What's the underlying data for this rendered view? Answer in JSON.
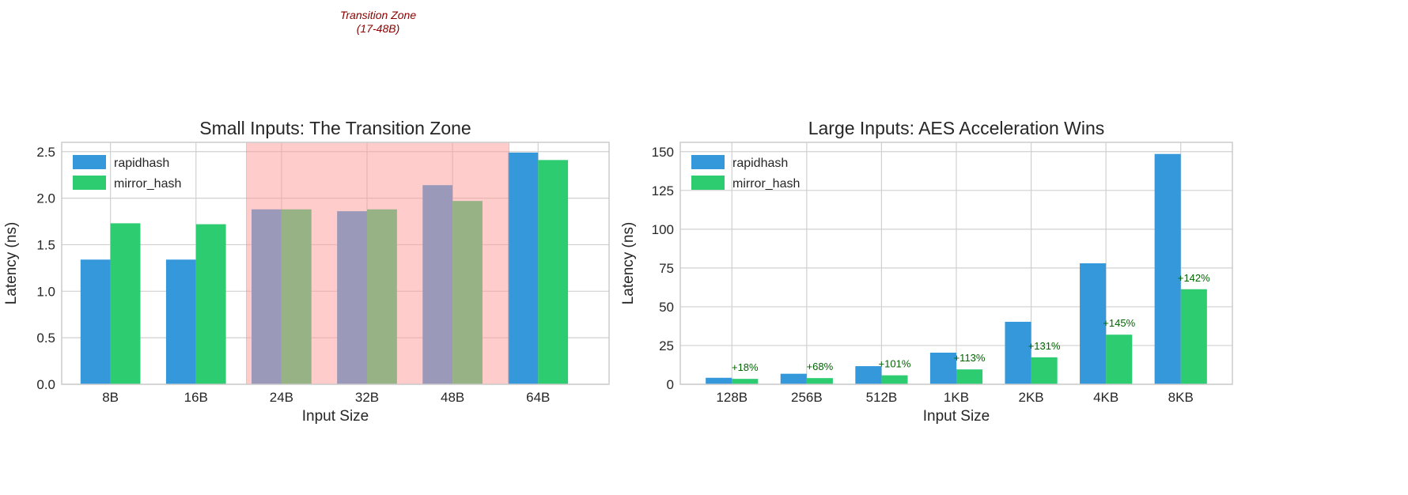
{
  "annotation": {
    "line1": "Transition Zone",
    "line2": "(17-48B)",
    "color": "#8b0000"
  },
  "chart_data": [
    {
      "type": "bar",
      "title": "Small Inputs: The Transition Zone",
      "xlabel": "Input Size",
      "ylabel": "Latency (ns)",
      "categories": [
        "8B",
        "16B",
        "24B",
        "32B",
        "48B",
        "64B"
      ],
      "ylim": [
        0,
        2.6
      ],
      "yticks": [
        "0.0",
        "0.5",
        "1.0",
        "1.5",
        "2.0",
        "2.5"
      ],
      "grid": true,
      "legend": "upper-left",
      "highlight_span": {
        "from": "24B",
        "to": "48B",
        "color": "#ff9999"
      },
      "series": [
        {
          "name": "rapidhash",
          "color": "#3498db",
          "values": [
            1.34,
            1.34,
            1.88,
            1.86,
            2.14,
            2.49
          ]
        },
        {
          "name": "mirror_hash",
          "color": "#2ecc71",
          "values": [
            1.73,
            1.72,
            1.88,
            1.88,
            1.97,
            2.41
          ]
        }
      ]
    },
    {
      "type": "bar",
      "title": "Large Inputs: AES Acceleration Wins",
      "xlabel": "Input Size",
      "ylabel": "Latency (ns)",
      "categories": [
        "128B",
        "256B",
        "512B",
        "1KB",
        "2KB",
        "4KB",
        "8KB"
      ],
      "ylim": [
        0,
        156
      ],
      "yticks": [
        "0",
        "25",
        "50",
        "75",
        "100",
        "125",
        "150"
      ],
      "grid": true,
      "legend": "upper-left",
      "series": [
        {
          "name": "rapidhash",
          "color": "#3498db",
          "values": [
            4.2,
            6.8,
            11.7,
            20.4,
            40.3,
            78,
            148.5
          ]
        },
        {
          "name": "mirror_hash",
          "color": "#2ecc71",
          "values": [
            3.5,
            4.0,
            5.8,
            9.6,
            17.4,
            32,
            61.3
          ]
        }
      ],
      "bar_labels": {
        "color": "#006400",
        "values": [
          "+18%",
          "+68%",
          "+101%",
          "+113%",
          "+131%",
          "+145%",
          "+142%"
        ]
      }
    }
  ]
}
